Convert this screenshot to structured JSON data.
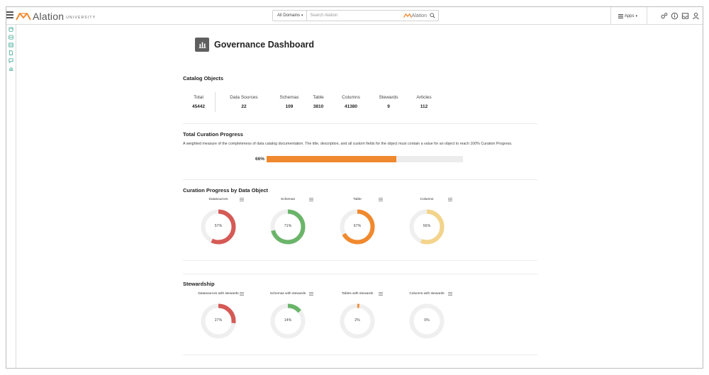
{
  "header": {
    "brand": "Alation",
    "brand_sub": "UNIVERSITY",
    "domains_label": "All Domains",
    "search_placeholder": "Search Alation",
    "search_brand": "Alation",
    "apps_label": "Apps"
  },
  "rail": {
    "icons": [
      "database-icon",
      "server-icon",
      "table-icon",
      "document-icon",
      "chat-icon",
      "chart-icon"
    ]
  },
  "dashboard": {
    "title": "Governance Dashboard"
  },
  "catalog": {
    "title": "Catalog Objects",
    "stats": [
      {
        "label": "Total",
        "value": "45442"
      },
      {
        "label": "Data Sources",
        "value": "22"
      },
      {
        "label": "Schemas",
        "value": "109"
      },
      {
        "label": "Table",
        "value": "3810"
      },
      {
        "label": "Columns",
        "value": "41380"
      },
      {
        "label": "Stewards",
        "value": "9"
      },
      {
        "label": "Articles",
        "value": "112"
      }
    ]
  },
  "curation": {
    "title": "Total Curation Progress",
    "description": "A weighted measure of the completeness of data catalog documentation. The title, description, and all custom fields for the object must contain a value for an object to reach 100% Curation Progress.",
    "percent_label": "66%",
    "percent": 66,
    "bar_color": "#f0892e"
  },
  "by_object": {
    "title": "Curation Progress by Data Object",
    "items": [
      {
        "title": "Datasources",
        "percent": 57,
        "label": "57%",
        "color": "#d55a55"
      },
      {
        "title": "Schemas",
        "percent": 71,
        "label": "71%",
        "color": "#6bb56a"
      },
      {
        "title": "Table",
        "percent": 67,
        "label": "67%",
        "color": "#f0892e"
      },
      {
        "title": "Columns",
        "percent": 56,
        "label": "56%",
        "color": "#f3d48b"
      }
    ]
  },
  "stewardship": {
    "title": "Stewardship",
    "items": [
      {
        "title": "Datasources with stewards",
        "percent": 27,
        "label": "27%",
        "color": "#d55a55"
      },
      {
        "title": "Schemas with stewards",
        "percent": 14,
        "label": "14%",
        "color": "#6bb56a"
      },
      {
        "title": "Tables with stewards",
        "percent": 2,
        "label": "2%",
        "color": "#f0892e"
      },
      {
        "title": "Columns with stewards",
        "percent": 0,
        "label": "0%",
        "color": "#f3d48b"
      }
    ]
  },
  "colors": {
    "track": "#efefef",
    "rail_icon": "#3aa58f"
  }
}
